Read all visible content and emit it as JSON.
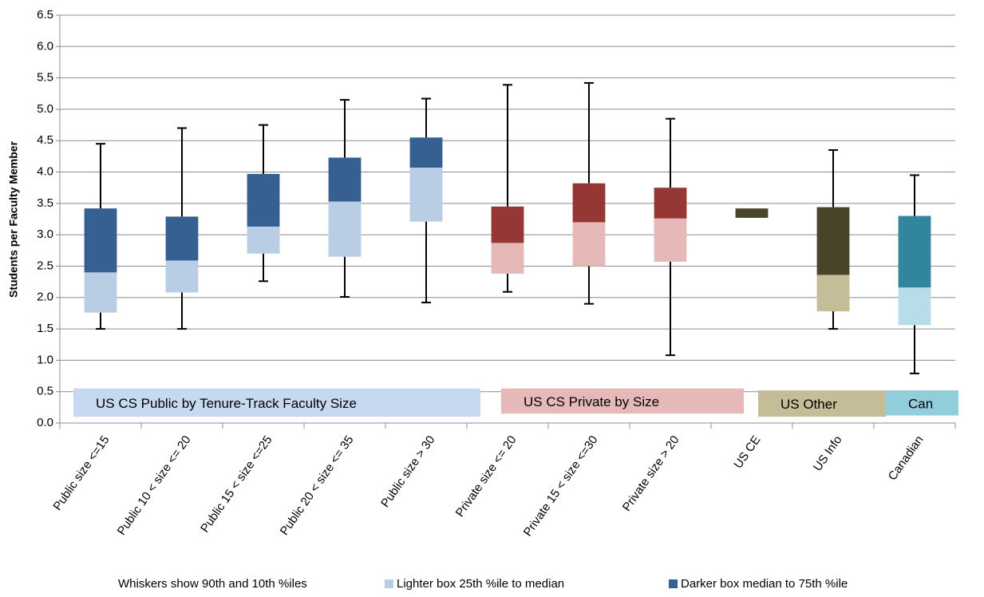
{
  "chart_data": {
    "type": "box",
    "y_label": "Students per Faculty Member",
    "categories": [
      "Public size <=15",
      "Public 10 < size <= 20",
      "Public 15 < size <=25",
      "Public 20 < size <= 35",
      "Public size > 30",
      "Private size <= 20",
      "Private 15 < size <=30",
      "Private size > 20",
      "US CE",
      "US Info",
      "Canadian"
    ],
    "boxes": [
      {
        "p10": 1.5,
        "q1": 1.76,
        "median": 2.4,
        "q3": 3.42,
        "p90": 4.45,
        "light": "#b9cde5",
        "dark": "#376092"
      },
      {
        "p10": 1.5,
        "q1": 2.08,
        "median": 2.59,
        "q3": 3.29,
        "p90": 4.7,
        "light": "#b9cde5",
        "dark": "#376092"
      },
      {
        "p10": 2.26,
        "q1": 2.7,
        "median": 3.13,
        "q3": 3.97,
        "p90": 4.75,
        "light": "#b9cde5",
        "dark": "#376092"
      },
      {
        "p10": 2.01,
        "q1": 2.65,
        "median": 3.53,
        "q3": 4.23,
        "p90": 5.15,
        "light": "#b9cde5",
        "dark": "#376092"
      },
      {
        "p10": 1.92,
        "q1": 3.21,
        "median": 4.07,
        "q3": 4.55,
        "p90": 5.17,
        "light": "#b9cde5",
        "dark": "#376092"
      },
      {
        "p10": 2.09,
        "q1": 2.38,
        "median": 2.87,
        "q3": 3.45,
        "p90": 5.39,
        "light": "#e6b9b8",
        "dark": "#953735"
      },
      {
        "p10": 1.9,
        "q1": 2.5,
        "median": 3.2,
        "q3": 3.82,
        "p90": 5.42,
        "light": "#e6b9b8",
        "dark": "#953735"
      },
      {
        "p10": 1.08,
        "q1": 2.57,
        "median": 3.26,
        "q3": 3.75,
        "p90": 4.85,
        "light": "#e6b9b8",
        "dark": "#953735"
      },
      {
        "p10": null,
        "q1": 3.27,
        "median": 3.27,
        "q3": 3.42,
        "p90": null,
        "light": "#c4bd97",
        "dark": "#4a452a"
      },
      {
        "p10": 1.5,
        "q1": 1.78,
        "median": 2.36,
        "q3": 3.44,
        "p90": 4.35,
        "light": "#c4bd97",
        "dark": "#4a452a"
      },
      {
        "p10": 0.79,
        "q1": 1.56,
        "median": 2.16,
        "q3": 3.3,
        "p90": 3.95,
        "light": "#b7dee8",
        "dark": "#31859c"
      }
    ],
    "groups": [
      {
        "label": "US CS Public by Tenure-Track Faculty Size",
        "color": "#c6d9f1"
      },
      {
        "label": "US CS Private by Size",
        "color": "#e6b9b8"
      },
      {
        "label": "US Other",
        "color": "#c4bd97"
      },
      {
        "label": "Can",
        "color": "#92cddc"
      }
    ],
    "legend": [
      {
        "label": "Whiskers show 90th and 10th %iles"
      },
      {
        "label": "Lighter box  25th %ile to median",
        "color": "#b9cde5"
      },
      {
        "label": "Darker box  median to 75th %ile",
        "color": "#376092"
      }
    ],
    "ylim": [
      0,
      6.5
    ],
    "yticks": [
      {
        "value": 0,
        "label": "0.0"
      },
      0.5,
      {
        "value": 1,
        "label": "1.0"
      },
      1.5,
      {
        "value": 2,
        "label": "2.0"
      },
      2.5,
      {
        "value": 3,
        "label": "3.0"
      },
      3.5,
      {
        "value": 4,
        "label": "4.0"
      },
      4.5,
      {
        "value": 5,
        "label": "5.0"
      },
      5.5,
      {
        "value": 6,
        "label": "6.0"
      },
      6.5
    ],
    "grid": true
  }
}
